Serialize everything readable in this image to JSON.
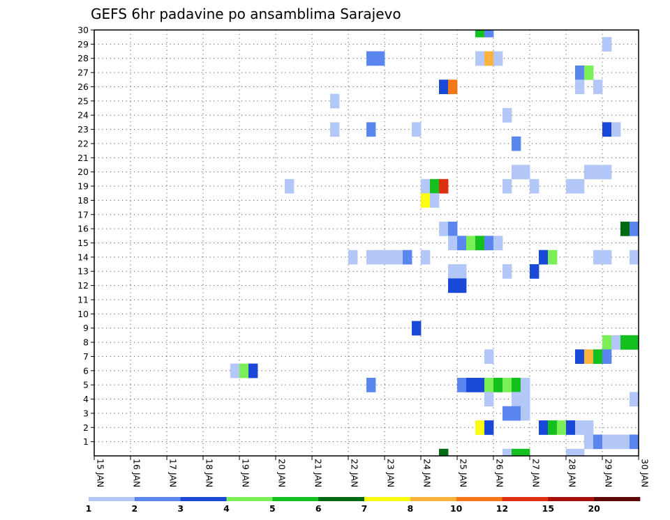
{
  "chart_data": {
    "type": "heatmap",
    "title": "GEFS 6hr padavine po ansamblima Sarajevo",
    "xlabel": "",
    "ylabel": "",
    "x_ticks": [
      "15 JAN",
      "16 JAN",
      "17 JAN",
      "18 JAN",
      "19 JAN",
      "20 JAN",
      "21 JAN",
      "22 JAN",
      "23 JAN",
      "24 JAN",
      "25 JAN",
      "26 JAN",
      "27 JAN",
      "28 JAN",
      "29 JAN",
      "30 JAN"
    ],
    "y_ticks": [
      "1",
      "2",
      "3",
      "4",
      "5",
      "6",
      "7",
      "8",
      "9",
      "10",
      "11",
      "12",
      "13",
      "14",
      "15",
      "16",
      "17",
      "18",
      "19",
      "20",
      "21",
      "22",
      "23",
      "24",
      "25",
      "26",
      "27",
      "28",
      "29",
      "30"
    ],
    "step_hours": 6,
    "x_steps_total": 60,
    "y_range": [
      0,
      30
    ],
    "grid": true,
    "color_scale": {
      "labels": [
        "1",
        "2",
        "3",
        "4",
        "5",
        "6",
        "7",
        "8",
        "10",
        "12",
        "15",
        "20"
      ],
      "colors": [
        "#b3c8f8",
        "#5b86ef",
        "#1a49d8",
        "#7bef58",
        "#14c01e",
        "#006b14",
        "#fcfc14",
        "#fcb23c",
        "#f47818",
        "#dc3010",
        "#a8100c",
        "#5e0606"
      ]
    },
    "cells": [
      {
        "member": 30,
        "step": 42,
        "cls": 4
      },
      {
        "member": 30,
        "step": 43,
        "cls": 1
      },
      {
        "member": 29,
        "step": 56,
        "cls": 0
      },
      {
        "member": 28,
        "step": 30,
        "cls": 1
      },
      {
        "member": 28,
        "step": 31,
        "cls": 1
      },
      {
        "member": 28,
        "step": 42,
        "cls": 0
      },
      {
        "member": 28,
        "step": 43,
        "cls": 7
      },
      {
        "member": 28,
        "step": 44,
        "cls": 0
      },
      {
        "member": 27,
        "step": 53,
        "cls": 1
      },
      {
        "member": 27,
        "step": 54,
        "cls": 3
      },
      {
        "member": 26,
        "step": 38,
        "cls": 2
      },
      {
        "member": 26,
        "step": 39,
        "cls": 8
      },
      {
        "member": 26,
        "step": 53,
        "cls": 0
      },
      {
        "member": 26,
        "step": 55,
        "cls": 0
      },
      {
        "member": 25,
        "step": 26,
        "cls": 0
      },
      {
        "member": 24,
        "step": 45,
        "cls": 0
      },
      {
        "member": 23,
        "step": 26,
        "cls": 0
      },
      {
        "member": 23,
        "step": 30,
        "cls": 1
      },
      {
        "member": 23,
        "step": 35,
        "cls": 0
      },
      {
        "member": 23,
        "step": 56,
        "cls": 2
      },
      {
        "member": 23,
        "step": 57,
        "cls": 0
      },
      {
        "member": 22,
        "step": 46,
        "cls": 1
      },
      {
        "member": 20,
        "step": 46,
        "cls": 0
      },
      {
        "member": 20,
        "step": 47,
        "cls": 0
      },
      {
        "member": 20,
        "step": 54,
        "cls": 0
      },
      {
        "member": 20,
        "step": 55,
        "cls": 0
      },
      {
        "member": 20,
        "step": 56,
        "cls": 0
      },
      {
        "member": 19,
        "step": 21,
        "cls": 0
      },
      {
        "member": 19,
        "step": 36,
        "cls": 0
      },
      {
        "member": 19,
        "step": 37,
        "cls": 4
      },
      {
        "member": 19,
        "step": 38,
        "cls": 9
      },
      {
        "member": 19,
        "step": 45,
        "cls": 0
      },
      {
        "member": 19,
        "step": 48,
        "cls": 0
      },
      {
        "member": 19,
        "step": 52,
        "cls": 0
      },
      {
        "member": 19,
        "step": 53,
        "cls": 0
      },
      {
        "member": 18,
        "step": 36,
        "cls": 6
      },
      {
        "member": 18,
        "step": 37,
        "cls": 0
      },
      {
        "member": 16,
        "step": 38,
        "cls": 0
      },
      {
        "member": 16,
        "step": 39,
        "cls": 1
      },
      {
        "member": 16,
        "step": 58,
        "cls": 5
      },
      {
        "member": 16,
        "step": 59,
        "cls": 1
      },
      {
        "member": 15,
        "step": 39,
        "cls": 0
      },
      {
        "member": 15,
        "step": 40,
        "cls": 1
      },
      {
        "member": 15,
        "step": 41,
        "cls": 3
      },
      {
        "member": 15,
        "step": 42,
        "cls": 4
      },
      {
        "member": 15,
        "step": 43,
        "cls": 1
      },
      {
        "member": 15,
        "step": 44,
        "cls": 0
      },
      {
        "member": 14,
        "step": 28,
        "cls": 0
      },
      {
        "member": 14,
        "step": 30,
        "cls": 0
      },
      {
        "member": 14,
        "step": 31,
        "cls": 0
      },
      {
        "member": 14,
        "step": 32,
        "cls": 0
      },
      {
        "member": 14,
        "step": 33,
        "cls": 0
      },
      {
        "member": 14,
        "step": 34,
        "cls": 1
      },
      {
        "member": 14,
        "step": 36,
        "cls": 0
      },
      {
        "member": 14,
        "step": 49,
        "cls": 2
      },
      {
        "member": 14,
        "step": 50,
        "cls": 3
      },
      {
        "member": 14,
        "step": 55,
        "cls": 0
      },
      {
        "member": 14,
        "step": 56,
        "cls": 0
      },
      {
        "member": 14,
        "step": 59,
        "cls": 0
      },
      {
        "member": 13,
        "step": 39,
        "cls": 0
      },
      {
        "member": 13,
        "step": 40,
        "cls": 0
      },
      {
        "member": 13,
        "step": 45,
        "cls": 0
      },
      {
        "member": 13,
        "step": 48,
        "cls": 2
      },
      {
        "member": 12,
        "step": 39,
        "cls": 2
      },
      {
        "member": 12,
        "step": 40,
        "cls": 2
      },
      {
        "member": 9,
        "step": 35,
        "cls": 2
      },
      {
        "member": 8,
        "step": 56,
        "cls": 3
      },
      {
        "member": 8,
        "step": 57,
        "cls": 0
      },
      {
        "member": 8,
        "step": 58,
        "cls": 4
      },
      {
        "member": 8,
        "step": 59,
        "cls": 4
      },
      {
        "member": 7,
        "step": 43,
        "cls": 0
      },
      {
        "member": 7,
        "step": 53,
        "cls": 2
      },
      {
        "member": 7,
        "step": 54,
        "cls": 7
      },
      {
        "member": 7,
        "step": 55,
        "cls": 4
      },
      {
        "member": 7,
        "step": 56,
        "cls": 1
      },
      {
        "member": 6,
        "step": 15,
        "cls": 0
      },
      {
        "member": 6,
        "step": 16,
        "cls": 3
      },
      {
        "member": 6,
        "step": 17,
        "cls": 2
      },
      {
        "member": 5,
        "step": 30,
        "cls": 1
      },
      {
        "member": 5,
        "step": 40,
        "cls": 1
      },
      {
        "member": 5,
        "step": 41,
        "cls": 2
      },
      {
        "member": 5,
        "step": 42,
        "cls": 2
      },
      {
        "member": 5,
        "step": 43,
        "cls": 3
      },
      {
        "member": 5,
        "step": 44,
        "cls": 4
      },
      {
        "member": 5,
        "step": 45,
        "cls": 3
      },
      {
        "member": 5,
        "step": 46,
        "cls": 4
      },
      {
        "member": 5,
        "step": 47,
        "cls": 0
      },
      {
        "member": 4,
        "step": 43,
        "cls": 0
      },
      {
        "member": 4,
        "step": 46,
        "cls": 0
      },
      {
        "member": 4,
        "step": 47,
        "cls": 0
      },
      {
        "member": 4,
        "step": 59,
        "cls": 0
      },
      {
        "member": 3,
        "step": 45,
        "cls": 1
      },
      {
        "member": 3,
        "step": 46,
        "cls": 1
      },
      {
        "member": 3,
        "step": 47,
        "cls": 0
      },
      {
        "member": 2,
        "step": 42,
        "cls": 6
      },
      {
        "member": 2,
        "step": 43,
        "cls": 2
      },
      {
        "member": 2,
        "step": 49,
        "cls": 2
      },
      {
        "member": 2,
        "step": 50,
        "cls": 4
      },
      {
        "member": 2,
        "step": 51,
        "cls": 3
      },
      {
        "member": 2,
        "step": 52,
        "cls": 2
      },
      {
        "member": 2,
        "step": 53,
        "cls": 0
      },
      {
        "member": 2,
        "step": 54,
        "cls": 0
      },
      {
        "member": 1,
        "step": 54,
        "cls": 0
      },
      {
        "member": 1,
        "step": 55,
        "cls": 1
      },
      {
        "member": 1,
        "step": 56,
        "cls": 0
      },
      {
        "member": 1,
        "step": 57,
        "cls": 0
      },
      {
        "member": 1,
        "step": 58,
        "cls": 0
      },
      {
        "member": 1,
        "step": 59,
        "cls": 1
      },
      {
        "member": 0,
        "step": 38,
        "cls": 5
      },
      {
        "member": 0,
        "step": 45,
        "cls": 0
      },
      {
        "member": 0,
        "step": 46,
        "cls": 4
      },
      {
        "member": 0,
        "step": 47,
        "cls": 4
      },
      {
        "member": 0,
        "step": 52,
        "cls": 0
      },
      {
        "member": 0,
        "step": 53,
        "cls": 0
      }
    ]
  }
}
